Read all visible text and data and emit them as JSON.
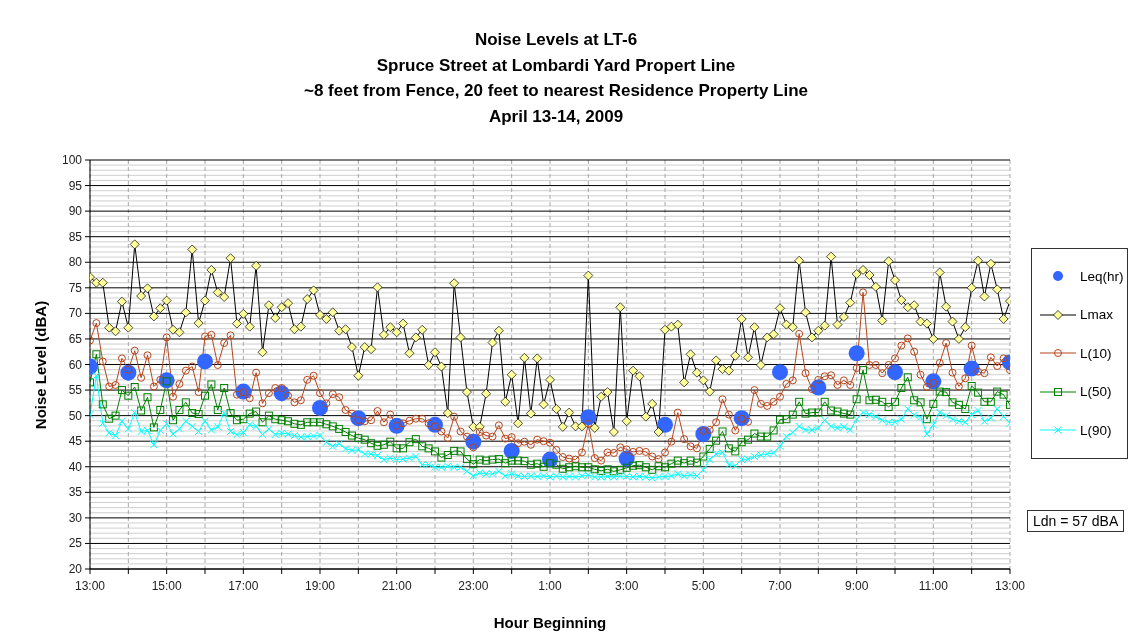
{
  "chart_data": {
    "type": "line",
    "title": "Noise Levels at LT-6\nSpruce Street at Lombardi Yard Propert Line\n~8 feet from Fence, 20 feet to nearest Residence Property Line\nApril 13-14, 2009",
    "xlabel": "Hour Beginning",
    "ylabel": "Noise Level (dBA)",
    "xlim": [
      "2009-04-13T13:00",
      "2009-04-14T13:00"
    ],
    "ylim": [
      20,
      100
    ],
    "xticks": [
      {
        "value": "2009-04-13T13:00",
        "label": "13:00"
      },
      {
        "value": "2009-04-13T14:00",
        "label": null
      },
      {
        "value": "2009-04-13T15:00",
        "label": "15:00"
      },
      {
        "value": "2009-04-13T16:00",
        "label": null
      },
      {
        "value": "2009-04-13T17:00",
        "label": "17:00"
      },
      {
        "value": "2009-04-13T18:00",
        "label": null
      },
      {
        "value": "2009-04-13T19:00",
        "label": "19:00"
      },
      {
        "value": "2009-04-13T20:00",
        "label": null
      },
      {
        "value": "2009-04-13T21:00",
        "label": "21:00"
      },
      {
        "value": "2009-04-13T22:00",
        "label": null
      },
      {
        "value": "2009-04-13T23:00",
        "label": "23:00"
      },
      {
        "value": "2009-04-14T00:00",
        "label": null
      },
      {
        "value": "2009-04-14T01:00",
        "label": "1:00"
      },
      {
        "value": "2009-04-14T02:00",
        "label": null
      },
      {
        "value": "2009-04-14T03:00",
        "label": "3:00"
      },
      {
        "value": "2009-04-14T04:00",
        "label": null
      },
      {
        "value": "2009-04-14T05:00",
        "label": "5:00"
      },
      {
        "value": "2009-04-14T06:00",
        "label": null
      },
      {
        "value": "2009-04-14T07:00",
        "label": "7:00"
      },
      {
        "value": "2009-04-14T08:00",
        "label": null
      },
      {
        "value": "2009-04-14T09:00",
        "label": "9:00"
      },
      {
        "value": "2009-04-14T10:00",
        "label": null
      },
      {
        "value": "2009-04-14T11:00",
        "label": "11:00"
      },
      {
        "value": "2009-04-14T12:00",
        "label": null
      },
      {
        "value": "2009-04-14T13:00",
        "label": "13:00"
      }
    ],
    "yticks": [
      20,
      {
        "value": 21,
        "label": null
      },
      {
        "value": 22,
        "label": null
      },
      {
        "value": 23,
        "label": null
      },
      {
        "value": 24,
        "label": null
      },
      25,
      {
        "value": 26,
        "label": null
      },
      {
        "value": 27,
        "label": null
      },
      {
        "value": 28,
        "label": null
      },
      {
        "value": 29,
        "label": null
      },
      30,
      {
        "value": 31,
        "label": null
      },
      {
        "value": 32,
        "label": null
      },
      {
        "value": 33,
        "label": null
      },
      {
        "value": 34,
        "label": null
      },
      35,
      {
        "value": 36,
        "label": null
      },
      {
        "value": 37,
        "label": null
      },
      {
        "value": 38,
        "label": null
      },
      {
        "value": 39,
        "label": null
      },
      40,
      {
        "value": 41,
        "label": null
      },
      {
        "value": 42,
        "label": null
      },
      {
        "value": 43,
        "label": null
      },
      {
        "value": 44,
        "label": null
      },
      45,
      {
        "value": 46,
        "label": null
      },
      {
        "value": 47,
        "label": null
      },
      {
        "value": 48,
        "label": null
      },
      {
        "value": 49,
        "label": null
      },
      50,
      {
        "value": 51,
        "label": null
      },
      {
        "value": 52,
        "label": null
      },
      {
        "value": 53,
        "label": null
      },
      {
        "value": 54,
        "label": null
      },
      55,
      {
        "value": 56,
        "label": null
      },
      {
        "value": 57,
        "label": null
      },
      {
        "value": 58,
        "label": null
      },
      {
        "value": 59,
        "label": null
      },
      60,
      {
        "value": 61,
        "label": null
      },
      {
        "value": 62,
        "label": null
      },
      {
        "value": 63,
        "label": null
      },
      {
        "value": 64,
        "label": null
      },
      65,
      {
        "value": 66,
        "label": null
      },
      {
        "value": 67,
        "label": null
      },
      {
        "value": 68,
        "label": null
      },
      {
        "value": 69,
        "label": null
      },
      70,
      {
        "value": 71,
        "label": null
      },
      {
        "value": 72,
        "label": null
      },
      {
        "value": 73,
        "label": null
      },
      {
        "value": 74,
        "label": null
      },
      75,
      {
        "value": 76,
        "label": null
      },
      {
        "value": 77,
        "label": null
      },
      {
        "value": 78,
        "label": null
      },
      {
        "value": 79,
        "label": null
      },
      80,
      {
        "value": 81,
        "label": null
      },
      {
        "value": 82,
        "label": null
      },
      {
        "value": 83,
        "label": null
      },
      {
        "value": 84,
        "label": null
      },
      85,
      {
        "value": 86,
        "label": null
      },
      {
        "value": 87,
        "label": null
      },
      {
        "value": 88,
        "label": null
      },
      {
        "value": 89,
        "label": null
      },
      90,
      {
        "value": 91,
        "label": null
      },
      {
        "value": 92,
        "label": null
      },
      {
        "value": 93,
        "label": null
      },
      {
        "value": 94,
        "label": null
      },
      95,
      {
        "value": 96,
        "label": null
      },
      {
        "value": 97,
        "label": null
      },
      {
        "value": 98,
        "label": null
      },
      {
        "value": 99,
        "label": null
      },
      100
    ],
    "grid": true,
    "legend": "right",
    "annotations": [
      "Ldn = 57 dBA"
    ],
    "x": [
      "2009-04-13T13:00",
      "2009-04-13T13:10",
      "2009-04-13T13:20",
      "2009-04-13T13:30",
      "2009-04-13T13:40",
      "2009-04-13T13:50",
      "2009-04-13T14:00",
      "2009-04-13T14:10",
      "2009-04-13T14:20",
      "2009-04-13T14:30",
      "2009-04-13T14:40",
      "2009-04-13T14:50",
      "2009-04-13T15:00",
      "2009-04-13T15:10",
      "2009-04-13T15:20",
      "2009-04-13T15:30",
      "2009-04-13T15:40",
      "2009-04-13T15:50",
      "2009-04-13T16:00",
      "2009-04-13T16:10",
      "2009-04-13T16:20",
      "2009-04-13T16:30",
      "2009-04-13T16:40",
      "2009-04-13T16:50",
      "2009-04-13T17:00",
      "2009-04-13T17:10",
      "2009-04-13T17:20",
      "2009-04-13T17:30",
      "2009-04-13T17:40",
      "2009-04-13T17:50",
      "2009-04-13T18:00",
      "2009-04-13T18:10",
      "2009-04-13T18:20",
      "2009-04-13T18:30",
      "2009-04-13T18:40",
      "2009-04-13T18:50",
      "2009-04-13T19:00",
      "2009-04-13T19:10",
      "2009-04-13T19:20",
      "2009-04-13T19:30",
      "2009-04-13T19:40",
      "2009-04-13T19:50",
      "2009-04-13T20:00",
      "2009-04-13T20:10",
      "2009-04-13T20:20",
      "2009-04-13T20:30",
      "2009-04-13T20:40",
      "2009-04-13T20:50",
      "2009-04-13T21:00",
      "2009-04-13T21:10",
      "2009-04-13T21:20",
      "2009-04-13T21:30",
      "2009-04-13T21:40",
      "2009-04-13T21:50",
      "2009-04-13T22:00",
      "2009-04-13T22:10",
      "2009-04-13T22:20",
      "2009-04-13T22:30",
      "2009-04-13T22:40",
      "2009-04-13T22:50",
      "2009-04-13T23:00",
      "2009-04-13T23:10",
      "2009-04-13T23:20",
      "2009-04-13T23:30",
      "2009-04-13T23:40",
      "2009-04-13T23:50",
      "2009-04-14T00:00",
      "2009-04-14T00:10",
      "2009-04-14T00:20",
      "2009-04-14T00:30",
      "2009-04-14T00:40",
      "2009-04-14T00:50",
      "2009-04-14T01:00",
      "2009-04-14T01:10",
      "2009-04-14T01:20",
      "2009-04-14T01:30",
      "2009-04-14T01:40",
      "2009-04-14T01:50",
      "2009-04-14T02:00",
      "2009-04-14T02:10",
      "2009-04-14T02:20",
      "2009-04-14T02:30",
      "2009-04-14T02:40",
      "2009-04-14T02:50",
      "2009-04-14T03:00",
      "2009-04-14T03:10",
      "2009-04-14T03:20",
      "2009-04-14T03:30",
      "2009-04-14T03:40",
      "2009-04-14T03:50",
      "2009-04-14T04:00",
      "2009-04-14T04:10",
      "2009-04-14T04:20",
      "2009-04-14T04:30",
      "2009-04-14T04:40",
      "2009-04-14T04:50",
      "2009-04-14T05:00",
      "2009-04-14T05:10",
      "2009-04-14T05:20",
      "2009-04-14T05:30",
      "2009-04-14T05:40",
      "2009-04-14T05:50",
      "2009-04-14T06:00",
      "2009-04-14T06:10",
      "2009-04-14T06:20",
      "2009-04-14T06:30",
      "2009-04-14T06:40",
      "2009-04-14T06:50",
      "2009-04-14T07:00",
      "2009-04-14T07:10",
      "2009-04-14T07:20",
      "2009-04-14T07:30",
      "2009-04-14T07:40",
      "2009-04-14T07:50",
      "2009-04-14T08:00",
      "2009-04-14T08:10",
      "2009-04-14T08:20",
      "2009-04-14T08:30",
      "2009-04-14T08:40",
      "2009-04-14T08:50",
      "2009-04-14T09:00",
      "2009-04-14T09:10",
      "2009-04-14T09:20",
      "2009-04-14T09:30",
      "2009-04-14T09:40",
      "2009-04-14T09:50",
      "2009-04-14T10:00",
      "2009-04-14T10:10",
      "2009-04-14T10:20",
      "2009-04-14T10:30",
      "2009-04-14T10:40",
      "2009-04-14T10:50",
      "2009-04-14T11:00",
      "2009-04-14T11:10",
      "2009-04-14T11:20",
      "2009-04-14T11:30",
      "2009-04-14T11:40",
      "2009-04-14T11:50",
      "2009-04-14T12:00",
      "2009-04-14T12:10",
      "2009-04-14T12:20",
      "2009-04-14T12:30",
      "2009-04-14T12:40",
      "2009-04-14T12:50",
      "2009-04-14T13:00"
    ],
    "series": [
      {
        "name": "Leq(hr)",
        "type": "scatter",
        "marker": "circle",
        "color": "#3366ff",
        "x": [
          "2009-04-13T13:00",
          "2009-04-13T14:00",
          "2009-04-13T15:00",
          "2009-04-13T16:00",
          "2009-04-13T17:00",
          "2009-04-13T18:00",
          "2009-04-13T19:00",
          "2009-04-13T20:00",
          "2009-04-13T21:00",
          "2009-04-13T22:00",
          "2009-04-13T23:00",
          "2009-04-14T00:00",
          "2009-04-14T01:00",
          "2009-04-14T02:00",
          "2009-04-14T03:00",
          "2009-04-14T04:00",
          "2009-04-14T05:00",
          "2009-04-14T06:00",
          "2009-04-14T07:00",
          "2009-04-14T08:00",
          "2009-04-14T09:00",
          "2009-04-14T10:00",
          "2009-04-14T11:00",
          "2009-04-14T12:00",
          "2009-04-14T13:00"
        ],
        "values": [
          59.6,
          58.4,
          56.9,
          60.6,
          54.7,
          54.4,
          51.5,
          49.5,
          48.0,
          48.2,
          44.9,
          43.1,
          41.4,
          49.7,
          41.6,
          48.2,
          46.4,
          49.5,
          58.5,
          55.5,
          62.2,
          58.5,
          56.7,
          59.2,
          60.4
        ]
      },
      {
        "name": "Lmax",
        "marker": "diamond",
        "color": "#000000",
        "values": [
          77.1,
          76.0,
          76.0,
          67.2,
          66.5,
          72.3,
          67.2,
          83.5,
          73.4,
          74.9,
          69.4,
          71.0,
          72.5,
          66.8,
          66.3,
          70.2,
          82.5,
          68.1,
          72.5,
          78.5,
          74.1,
          73.2,
          80.8,
          68.0,
          69.9,
          67.4,
          79.3,
          62.4,
          71.6,
          69.1,
          71.2,
          72.0,
          66.9,
          67.4,
          72.8,
          74.5,
          69.7,
          68.9,
          70.2,
          66.6,
          66.9,
          63.4,
          57.8,
          63.4,
          63.0,
          75.1,
          65.8,
          67.3,
          66.3,
          68.0,
          62.2,
          65.3,
          66.8,
          59.9,
          62.4,
          59.6,
          50.5,
          75.9,
          65.3,
          54.6,
          47.8,
          47.8,
          54.3,
          64.3,
          66.6,
          52.7,
          58.0,
          48.5,
          61.3,
          50.4,
          61.2,
          52.2,
          57.0,
          51.3,
          47.8,
          50.6,
          47.9,
          47.9,
          77.4,
          47.6,
          53.7,
          54.6,
          46.8,
          71.2,
          48.9,
          58.8,
          57.7,
          49.8,
          52.3,
          46.8,
          66.8,
          67.4,
          67.8,
          56.5,
          62.0,
          58.4,
          56.9,
          54.7,
          60.8,
          59.1,
          58.8,
          61.7,
          68.9,
          61.4,
          67.3,
          59.9,
          65.3,
          65.9,
          71.0,
          67.8,
          67.3,
          80.3,
          70.2,
          65.3,
          66.6,
          67.6,
          81.1,
          67.8,
          69.3,
          72.1,
          77.7,
          78.5,
          77.5,
          75.2,
          68.6,
          80.2,
          76.5,
          72.6,
          71.2,
          71.6,
          68.4,
          68.0,
          65.0,
          78.0,
          71.3,
          68.4,
          65.0,
          67.3,
          75.0,
          80.3,
          73.3,
          79.7,
          74.7,
          68.9,
          72.4
        ]
      },
      {
        "name": "L(10)",
        "marker": "circle",
        "color": "#b5451b",
        "values": [
          64.7,
          68.1,
          60.6,
          55.7,
          56.0,
          61.2,
          59.0,
          62.7,
          57.4,
          61.8,
          55.7,
          57.0,
          65.3,
          53.7,
          56.2,
          58.8,
          59.6,
          54.6,
          65.5,
          65.8,
          59.9,
          64.2,
          65.7,
          54.1,
          54.6,
          53.4,
          58.4,
          52.4,
          54.4,
          55.4,
          55.4,
          53.9,
          52.6,
          53.0,
          57.0,
          57.8,
          54.4,
          52.4,
          54.2,
          53.6,
          51.1,
          50.4,
          49.1,
          48.9,
          49.1,
          50.9,
          48.7,
          50.2,
          48.0,
          48.5,
          49.0,
          49.4,
          49.4,
          48.5,
          47.9,
          46.9,
          45.6,
          49.8,
          46.9,
          45.9,
          43.8,
          46.8,
          46.1,
          45.9,
          48.1,
          45.5,
          45.8,
          44.6,
          44.9,
          44.3,
          45.3,
          45.0,
          44.7,
          43.3,
          41.9,
          41.6,
          41.4,
          42.8,
          48.4,
          41.7,
          41.2,
          42.8,
          42.7,
          43.8,
          43.4,
          42.9,
          43.1,
          42.9,
          42.0,
          41.5,
          42.8,
          44.9,
          50.6,
          45.4,
          44.0,
          43.6,
          47.0,
          47.2,
          48.7,
          53.2,
          50.2,
          47.1,
          49.4,
          48.8,
          55.0,
          52.3,
          51.9,
          52.7,
          53.7,
          56.2,
          56.9,
          66.0,
          58.3,
          55.2,
          57.0,
          57.7,
          57.9,
          56.0,
          56.9,
          56.0,
          59.3,
          74.1,
          59.9,
          59.9,
          58.3,
          59.9,
          61.2,
          63.7,
          65.1,
          62.5,
          58.0,
          55.6,
          56.4,
          60.3,
          64.2,
          58.4,
          55.7,
          57.3,
          63.7,
          58.6,
          58.3,
          61.4,
          59.7,
          61.2,
          58.9
        ]
      },
      {
        "name": "L(50)",
        "marker": "square",
        "color": "#008000",
        "values": [
          56.5,
          62.0,
          52.2,
          49.4,
          50.0,
          55.0,
          53.9,
          55.6,
          51.0,
          53.6,
          47.7,
          51.1,
          56.7,
          49.1,
          51.1,
          52.6,
          50.5,
          50.3,
          53.9,
          56.1,
          51.1,
          55.4,
          50.5,
          49.1,
          49.3,
          50.4,
          50.8,
          48.7,
          50.0,
          49.3,
          49.1,
          48.9,
          48.4,
          48.2,
          48.7,
          48.7,
          48.7,
          48.3,
          47.9,
          47.4,
          46.8,
          46.1,
          45.6,
          45.3,
          44.6,
          44.1,
          44.3,
          44.9,
          43.6,
          43.6,
          44.8,
          45.4,
          44.0,
          43.6,
          43.0,
          41.8,
          42.3,
          43.1,
          43.0,
          41.5,
          40.5,
          41.4,
          41.2,
          41.4,
          41.5,
          40.7,
          41.2,
          41.2,
          41.1,
          40.4,
          40.6,
          40.0,
          40.7,
          40.4,
          39.6,
          39.9,
          40.1,
          39.9,
          39.9,
          39.5,
          39.2,
          39.5,
          39.1,
          39.4,
          39.8,
          40.2,
          40.3,
          39.9,
          39.4,
          40.1,
          39.9,
          40.6,
          41.2,
          40.7,
          41.2,
          40.8,
          42.0,
          43.5,
          45.1,
          46.9,
          43.6,
          43.0,
          44.8,
          45.3,
          46.5,
          45.9,
          45.9,
          47.1,
          49.2,
          49.3,
          50.2,
          52.7,
          50.4,
          50.6,
          50.6,
          52.7,
          51.0,
          50.8,
          50.4,
          50.2,
          53.2,
          58.9,
          53.0,
          53.1,
          52.7,
          51.7,
          52.7,
          55.4,
          57.5,
          53.0,
          52.6,
          49.3,
          52.3,
          54.7,
          54.6,
          52.6,
          52.1,
          51.3,
          55.8,
          54.5,
          52.7,
          52.7,
          54.7,
          54.1,
          52.1
        ]
      },
      {
        "name": "L(90)",
        "marker": "cross",
        "color": "#00ffff",
        "values": [
          50.2,
          57.8,
          48.5,
          46.6,
          46.1,
          48.9,
          47.4,
          50.6,
          46.9,
          47.1,
          44.3,
          47.1,
          48.4,
          46.4,
          47.4,
          48.9,
          47.9,
          46.9,
          48.9,
          47.2,
          47.8,
          50.5,
          46.9,
          46.3,
          46.7,
          48.2,
          47.9,
          46.3,
          47.4,
          46.3,
          46.6,
          46.4,
          46.1,
          45.8,
          45.9,
          46.0,
          46.1,
          44.8,
          44.0,
          44.5,
          43.5,
          43.2,
          43.3,
          42.5,
          42.5,
          42.2,
          41.4,
          41.7,
          41.4,
          41.5,
          41.7,
          42.0,
          40.4,
          40.4,
          39.9,
          39.9,
          40.1,
          39.9,
          39.9,
          39.1,
          38.2,
          38.8,
          38.6,
          38.6,
          39.1,
          38.2,
          38.6,
          38.2,
          38.1,
          38.2,
          38.1,
          38.2,
          38.0,
          38.2,
          38.0,
          38.1,
          38.0,
          38.2,
          38.4,
          38.0,
          38.0,
          38.1,
          38.0,
          38.2,
          38.1,
          38.0,
          38.1,
          38.0,
          37.8,
          38.0,
          38.1,
          38.2,
          38.6,
          38.2,
          38.4,
          38.2,
          39.4,
          41.4,
          42.5,
          42.8,
          40.4,
          40.2,
          41.4,
          41.5,
          42.0,
          42.3,
          42.5,
          42.7,
          44.0,
          45.9,
          46.7,
          47.9,
          47.2,
          47.2,
          47.6,
          49.1,
          47.9,
          47.6,
          47.8,
          47.2,
          49.3,
          50.6,
          50.2,
          49.8,
          49.1,
          48.7,
          48.7,
          49.3,
          51.3,
          50.1,
          49.7,
          46.4,
          48.2,
          50.6,
          50.0,
          49.3,
          48.9,
          48.7,
          50.2,
          51.0,
          48.9,
          49.5,
          51.3,
          49.8,
          48.5
        ]
      }
    ]
  }
}
